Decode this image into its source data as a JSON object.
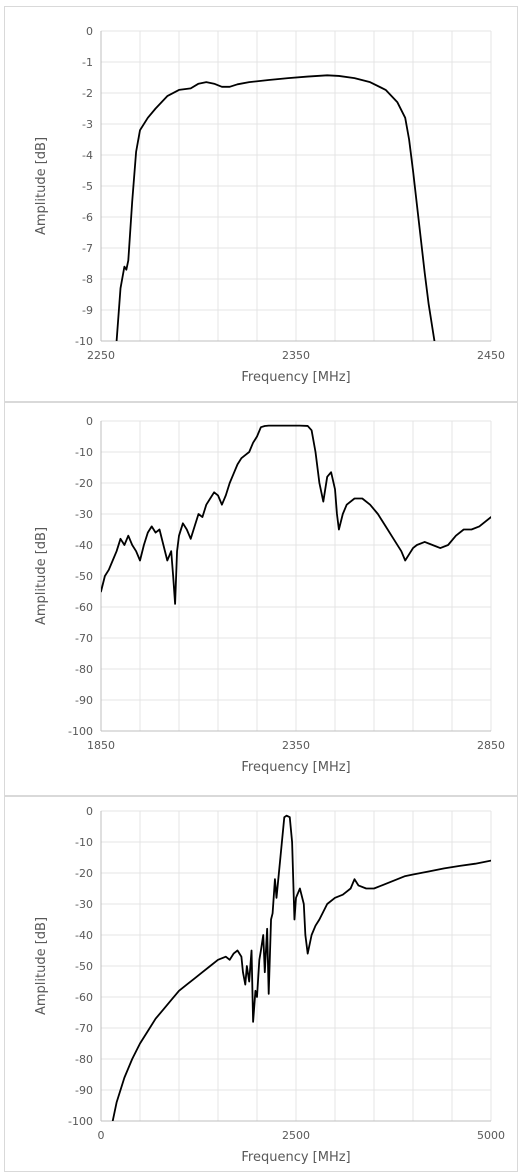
{
  "chart_data": [
    {
      "type": "line",
      "xlabel": "Frequency [MHz]",
      "ylabel": "Amplitude [dB]",
      "xlim": [
        2250,
        2450
      ],
      "ylim": [
        -10,
        0
      ],
      "x_ticks": [
        2250,
        2350,
        2450
      ],
      "y_ticks": [
        0,
        -1,
        -2,
        -3,
        -4,
        -5,
        -6,
        -7,
        -8,
        -9,
        -10
      ],
      "x_minor_step": 20,
      "grid": true,
      "line_color": "#000000",
      "series": [
        {
          "x": [
            2258,
            2260,
            2262,
            2263,
            2264,
            2266,
            2268,
            2270,
            2274,
            2278,
            2284,
            2290,
            2296,
            2300,
            2304,
            2308,
            2312,
            2316,
            2320,
            2326,
            2336,
            2346,
            2356,
            2366,
            2372,
            2380,
            2388,
            2396,
            2402,
            2406,
            2408,
            2410,
            2412,
            2414,
            2416,
            2418,
            2420,
            2421
          ],
          "y": [
            -10,
            -8.3,
            -7.6,
            -7.7,
            -7.4,
            -5.5,
            -3.9,
            -3.2,
            -2.8,
            -2.5,
            -2.1,
            -1.9,
            -1.85,
            -1.7,
            -1.65,
            -1.7,
            -1.8,
            -1.8,
            -1.72,
            -1.65,
            -1.58,
            -1.52,
            -1.47,
            -1.43,
            -1.45,
            -1.52,
            -1.65,
            -1.9,
            -2.3,
            -2.8,
            -3.5,
            -4.5,
            -5.6,
            -6.7,
            -7.8,
            -8.8,
            -9.6,
            -10
          ]
        }
      ]
    },
    {
      "type": "line",
      "xlabel": "Frequency [MHz]",
      "ylabel": "Amplitude [dB]",
      "xlim": [
        1850,
        2850
      ],
      "ylim": [
        -100,
        0
      ],
      "x_ticks": [
        1850,
        2350,
        2850
      ],
      "y_ticks": [
        0,
        -10,
        -20,
        -30,
        -40,
        -50,
        -60,
        -70,
        -80,
        -90,
        -100
      ],
      "x_minor_step": 100,
      "grid": true,
      "line_color": "#000000",
      "series": [
        {
          "x": [
            1850,
            1860,
            1870,
            1880,
            1890,
            1900,
            1910,
            1920,
            1930,
            1940,
            1950,
            1960,
            1970,
            1980,
            1990,
            2000,
            2010,
            2020,
            2030,
            2035,
            2040,
            2045,
            2050,
            2060,
            2070,
            2080,
            2090,
            2100,
            2110,
            2120,
            2130,
            2140,
            2150,
            2160,
            2170,
            2180,
            2190,
            2200,
            2210,
            2220,
            2230,
            2240,
            2250,
            2260,
            2270,
            2280,
            2290,
            2300,
            2320,
            2340,
            2360,
            2380,
            2390,
            2400,
            2410,
            2420,
            2425,
            2430,
            2440,
            2450,
            2455,
            2460,
            2470,
            2480,
            2500,
            2520,
            2540,
            2560,
            2580,
            2600,
            2620,
            2630,
            2640,
            2650,
            2660,
            2680,
            2700,
            2720,
            2740,
            2760,
            2780,
            2800,
            2820,
            2850
          ],
          "y": [
            -55,
            -50,
            -48,
            -45,
            -42,
            -38,
            -40,
            -37,
            -40,
            -42,
            -45,
            -40,
            -36,
            -34,
            -36,
            -35,
            -40,
            -45,
            -42,
            -50,
            -59,
            -42,
            -37,
            -33,
            -35,
            -38,
            -34,
            -30,
            -31,
            -27,
            -25,
            -23,
            -24,
            -27,
            -24,
            -20,
            -17,
            -14,
            -12,
            -11,
            -10,
            -7,
            -5,
            -2,
            -1.6,
            -1.5,
            -1.5,
            -1.5,
            -1.5,
            -1.5,
            -1.5,
            -1.6,
            -3,
            -10,
            -20,
            -26,
            -22,
            -18,
            -16.5,
            -22,
            -30,
            -35,
            -30,
            -27,
            -25,
            -25,
            -27,
            -30,
            -34,
            -38,
            -42,
            -45,
            -43,
            -41,
            -40,
            -39,
            -40,
            -41,
            -40,
            -37,
            -35,
            -35,
            -34,
            -31
          ]
        }
      ]
    },
    {
      "type": "line",
      "xlabel": "Frequency [MHz]",
      "ylabel": "Amplitude [dB]",
      "xlim": [
        0,
        5000
      ],
      "ylim": [
        -100,
        0
      ],
      "x_ticks": [
        0,
        2500,
        5000
      ],
      "y_ticks": [
        0,
        -10,
        -20,
        -30,
        -40,
        -50,
        -60,
        -70,
        -80,
        -90,
        -100
      ],
      "x_minor_step": 500,
      "grid": true,
      "line_color": "#000000",
      "series": [
        {
          "x": [
            150,
            200,
            300,
            400,
            500,
            600,
            700,
            800,
            900,
            1000,
            1100,
            1200,
            1300,
            1400,
            1500,
            1600,
            1650,
            1700,
            1750,
            1800,
            1820,
            1850,
            1870,
            1900,
            1930,
            1950,
            1980,
            2000,
            2030,
            2050,
            2080,
            2100,
            2130,
            2150,
            2180,
            2200,
            2230,
            2250,
            2300,
            2350,
            2380,
            2420,
            2450,
            2480,
            2500,
            2550,
            2600,
            2620,
            2650,
            2700,
            2750,
            2800,
            2900,
            3000,
            3100,
            3200,
            3250,
            3300,
            3400,
            3500,
            3600,
            3700,
            3800,
            3900,
            4000,
            4200,
            4400,
            4600,
            4800,
            5000
          ],
          "y": [
            -100,
            -94,
            -86,
            -80,
            -75,
            -71,
            -67,
            -64,
            -61,
            -58,
            -56,
            -54,
            -52,
            -50,
            -48,
            -47,
            -48,
            -46,
            -45,
            -47,
            -52,
            -56,
            -50,
            -55,
            -45,
            -68,
            -58,
            -60,
            -48,
            -45,
            -40,
            -52,
            -38,
            -59,
            -35,
            -33,
            -22,
            -28,
            -15,
            -2,
            -1.5,
            -2,
            -10,
            -35,
            -28,
            -25,
            -30,
            -40,
            -46,
            -40,
            -37,
            -35,
            -30,
            -28,
            -27,
            -25,
            -22,
            -24,
            -25,
            -25,
            -24,
            -23,
            -22,
            -21,
            -20.5,
            -19.5,
            -18.5,
            -17.7,
            -17,
            -16
          ]
        }
      ]
    }
  ]
}
